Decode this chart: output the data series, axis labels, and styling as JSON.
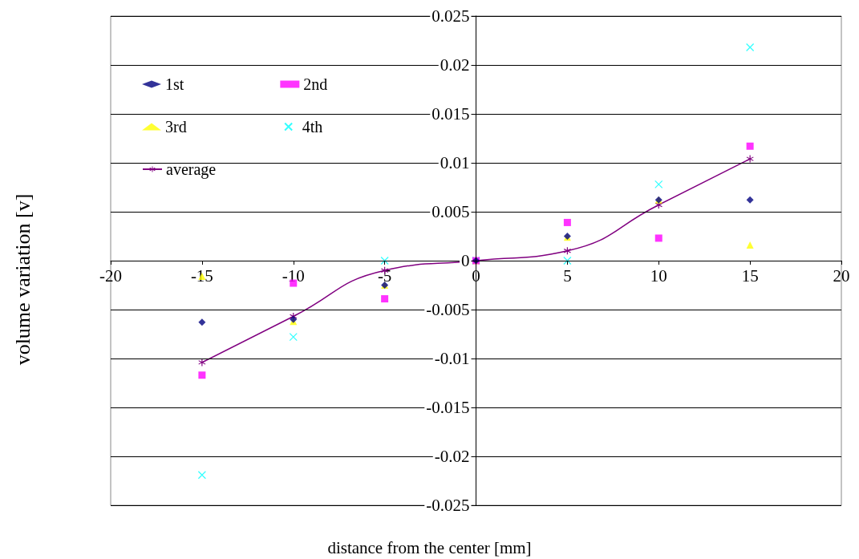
{
  "chart_data": {
    "type": "scatter",
    "xlabel": "distance from the center [mm]",
    "ylabel": "volume variation [v]",
    "x": [
      -15,
      -10,
      -5,
      0,
      5,
      10,
      15
    ],
    "series": [
      {
        "name": "1st",
        "color": "#000080",
        "marker": "diamond",
        "values": [
          -0.0063,
          -0.006,
          -0.0025,
          0,
          0.0025,
          0.0062,
          0.0062
        ]
      },
      {
        "name": "2nd",
        "color": "#ff00ff",
        "marker": "square",
        "values": [
          -0.0117,
          -0.0023,
          -0.0039,
          0,
          0.0039,
          0.0023,
          0.0117
        ]
      },
      {
        "name": "3rd",
        "color": "#ffff00",
        "marker": "triangle",
        "values": [
          -0.0016,
          -0.0062,
          -0.0025,
          0,
          0.0024,
          0.0062,
          0.0016
        ]
      },
      {
        "name": "4th",
        "color": "#00ffff",
        "marker": "cross",
        "values": [
          -0.0219,
          -0.0078,
          0,
          0,
          0,
          0.0078,
          0.0218
        ]
      },
      {
        "name": "average",
        "type": "line",
        "color": "#800080",
        "marker": "star",
        "values": [
          -0.0104,
          -0.0057,
          -0.001,
          0,
          0.001,
          0.0057,
          0.0104
        ]
      }
    ],
    "xlim": [
      -20,
      20
    ],
    "xticks": [
      -20,
      -15,
      -10,
      -5,
      0,
      5,
      10,
      15,
      20
    ],
    "ylim": [
      -0.025,
      0.025
    ],
    "yticks": [
      -0.025,
      -0.02,
      -0.015,
      -0.01,
      -0.005,
      0,
      0.005,
      0.01,
      0.015,
      0.02,
      0.025
    ],
    "grid": "y",
    "legend": "top left"
  }
}
